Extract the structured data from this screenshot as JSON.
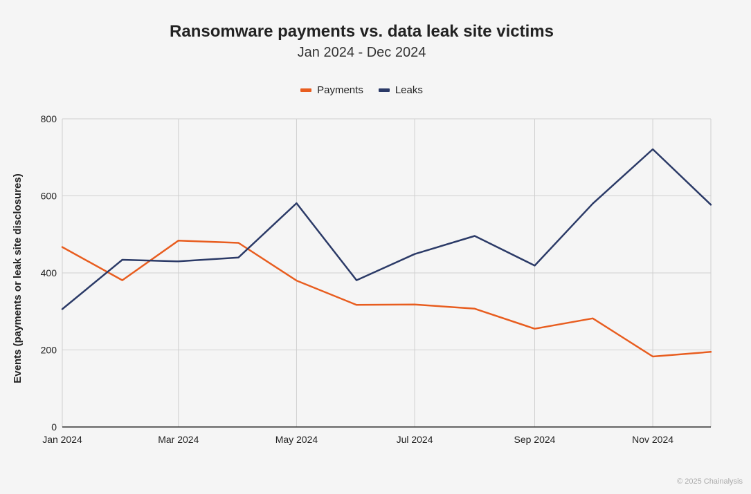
{
  "colors": {
    "payments": "#e85d1f",
    "leaks": "#2b3a67",
    "grid": "#cfcfcf",
    "axis": "#333333"
  },
  "footer": "© 2025 Chainalysis",
  "chart_data": {
    "type": "line",
    "title": "Ransomware payments vs. data leak site victims",
    "subtitle": "Jan 2024 - Dec 2024",
    "ylabel": "Events (payments or leak site disclosures)",
    "xlabel": "",
    "ylim": [
      0,
      800
    ],
    "yticks": [
      0,
      200,
      400,
      600,
      800
    ],
    "x": [
      "2024-01",
      "2024-02",
      "2024-03",
      "2024-04",
      "2024-05",
      "2024-06",
      "2024-07",
      "2024-08",
      "2024-09",
      "2024-10",
      "2024-11",
      "2024-12"
    ],
    "xtick_labels": [
      "Jan 2024",
      "Mar 2024",
      "May 2024",
      "Jul 2024",
      "Sep 2024",
      "Nov 2024"
    ],
    "xtick_months": [
      "2024-01",
      "2024-03",
      "2024-05",
      "2024-07",
      "2024-09",
      "2024-11"
    ],
    "grid": true,
    "legend_position": "top-center",
    "series": [
      {
        "name": "Payments",
        "values": [
          467,
          381,
          484,
          478,
          380,
          317,
          318,
          307,
          255,
          282,
          183,
          195
        ]
      },
      {
        "name": "Leaks",
        "values": [
          306,
          434,
          430,
          440,
          581,
          381,
          449,
          496,
          419,
          580,
          721,
          577
        ]
      }
    ]
  }
}
